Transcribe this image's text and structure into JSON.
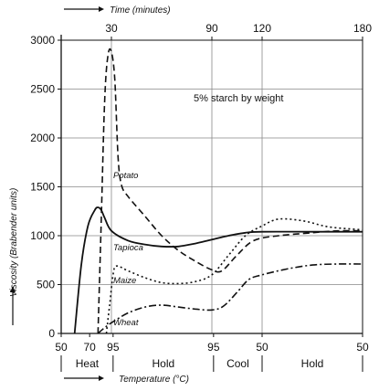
{
  "chart_data": {
    "type": "line",
    "x_axis_top": {
      "label": "Time (minutes)",
      "ticks": [
        {
          "t": 30,
          "label": "30"
        },
        {
          "t": 90,
          "label": "90"
        },
        {
          "t": 120,
          "label": "120"
        },
        {
          "t": 180,
          "label": "180"
        }
      ],
      "range": [
        0,
        180
      ]
    },
    "x_axis_bottom": {
      "label": "Temperature (°C)",
      "ticks": [
        {
          "t": 0,
          "label": "50"
        },
        {
          "t": 17,
          "label": "70"
        },
        {
          "t": 31,
          "label": "95"
        },
        {
          "t": 91,
          "label": "95"
        },
        {
          "t": 120,
          "label": "50"
        },
        {
          "t": 180,
          "label": "50"
        }
      ]
    },
    "y_axis": {
      "label": "Viscosity (Brabender units)",
      "range": [
        0,
        3000
      ],
      "ticks": [
        0,
        500,
        1000,
        1500,
        2000,
        2500,
        3000
      ]
    },
    "phases": [
      {
        "label": "Heat",
        "start": 0,
        "end": 31
      },
      {
        "label": "Hold",
        "start": 31,
        "end": 91
      },
      {
        "label": "Cool",
        "start": 91,
        "end": 120
      },
      {
        "label": "Hold",
        "start": 120,
        "end": 180
      }
    ],
    "annotation": "5% starch by weight",
    "series": [
      {
        "name": "Potato",
        "style": "dashed",
        "points": [
          [
            22,
            0
          ],
          [
            24,
            1200
          ],
          [
            26,
            2400
          ],
          [
            28,
            2850
          ],
          [
            30,
            2880
          ],
          [
            32,
            2600
          ],
          [
            34,
            1800
          ],
          [
            36,
            1520
          ],
          [
            40,
            1400
          ],
          [
            50,
            1200
          ],
          [
            60,
            1000
          ],
          [
            70,
            850
          ],
          [
            80,
            740
          ],
          [
            90,
            650
          ],
          [
            96,
            640
          ],
          [
            105,
            800
          ],
          [
            115,
            950
          ],
          [
            130,
            1000
          ],
          [
            150,
            1030
          ],
          [
            165,
            1050
          ],
          [
            180,
            1050
          ]
        ]
      },
      {
        "name": "Tapioca",
        "style": "solid",
        "points": [
          [
            8,
            0
          ],
          [
            12,
            700
          ],
          [
            16,
            1100
          ],
          [
            20,
            1260
          ],
          [
            22,
            1290
          ],
          [
            24,
            1260
          ],
          [
            26,
            1180
          ],
          [
            30,
            1050
          ],
          [
            40,
            950
          ],
          [
            50,
            910
          ],
          [
            60,
            890
          ],
          [
            70,
            890
          ],
          [
            80,
            920
          ],
          [
            90,
            960
          ],
          [
            100,
            1000
          ],
          [
            110,
            1030
          ],
          [
            120,
            1040
          ],
          [
            150,
            1040
          ],
          [
            180,
            1040
          ]
        ]
      },
      {
        "name": "Maize",
        "style": "dotted",
        "points": [
          [
            27,
            0
          ],
          [
            29,
            300
          ],
          [
            31,
            600
          ],
          [
            33,
            690
          ],
          [
            40,
            640
          ],
          [
            50,
            570
          ],
          [
            60,
            520
          ],
          [
            70,
            510
          ],
          [
            80,
            530
          ],
          [
            90,
            600
          ],
          [
            100,
            800
          ],
          [
            110,
            1000
          ],
          [
            120,
            1100
          ],
          [
            130,
            1170
          ],
          [
            145,
            1150
          ],
          [
            160,
            1090
          ],
          [
            180,
            1060
          ]
        ]
      },
      {
        "name": "Wheat",
        "style": "dash-dot",
        "points": [
          [
            22,
            0
          ],
          [
            26,
            60
          ],
          [
            31,
            120
          ],
          [
            40,
            210
          ],
          [
            50,
            270
          ],
          [
            60,
            290
          ],
          [
            70,
            270
          ],
          [
            80,
            250
          ],
          [
            90,
            240
          ],
          [
            97,
            280
          ],
          [
            105,
            420
          ],
          [
            112,
            550
          ],
          [
            120,
            600
          ],
          [
            135,
            660
          ],
          [
            150,
            700
          ],
          [
            165,
            710
          ],
          [
            180,
            710
          ]
        ]
      }
    ]
  }
}
